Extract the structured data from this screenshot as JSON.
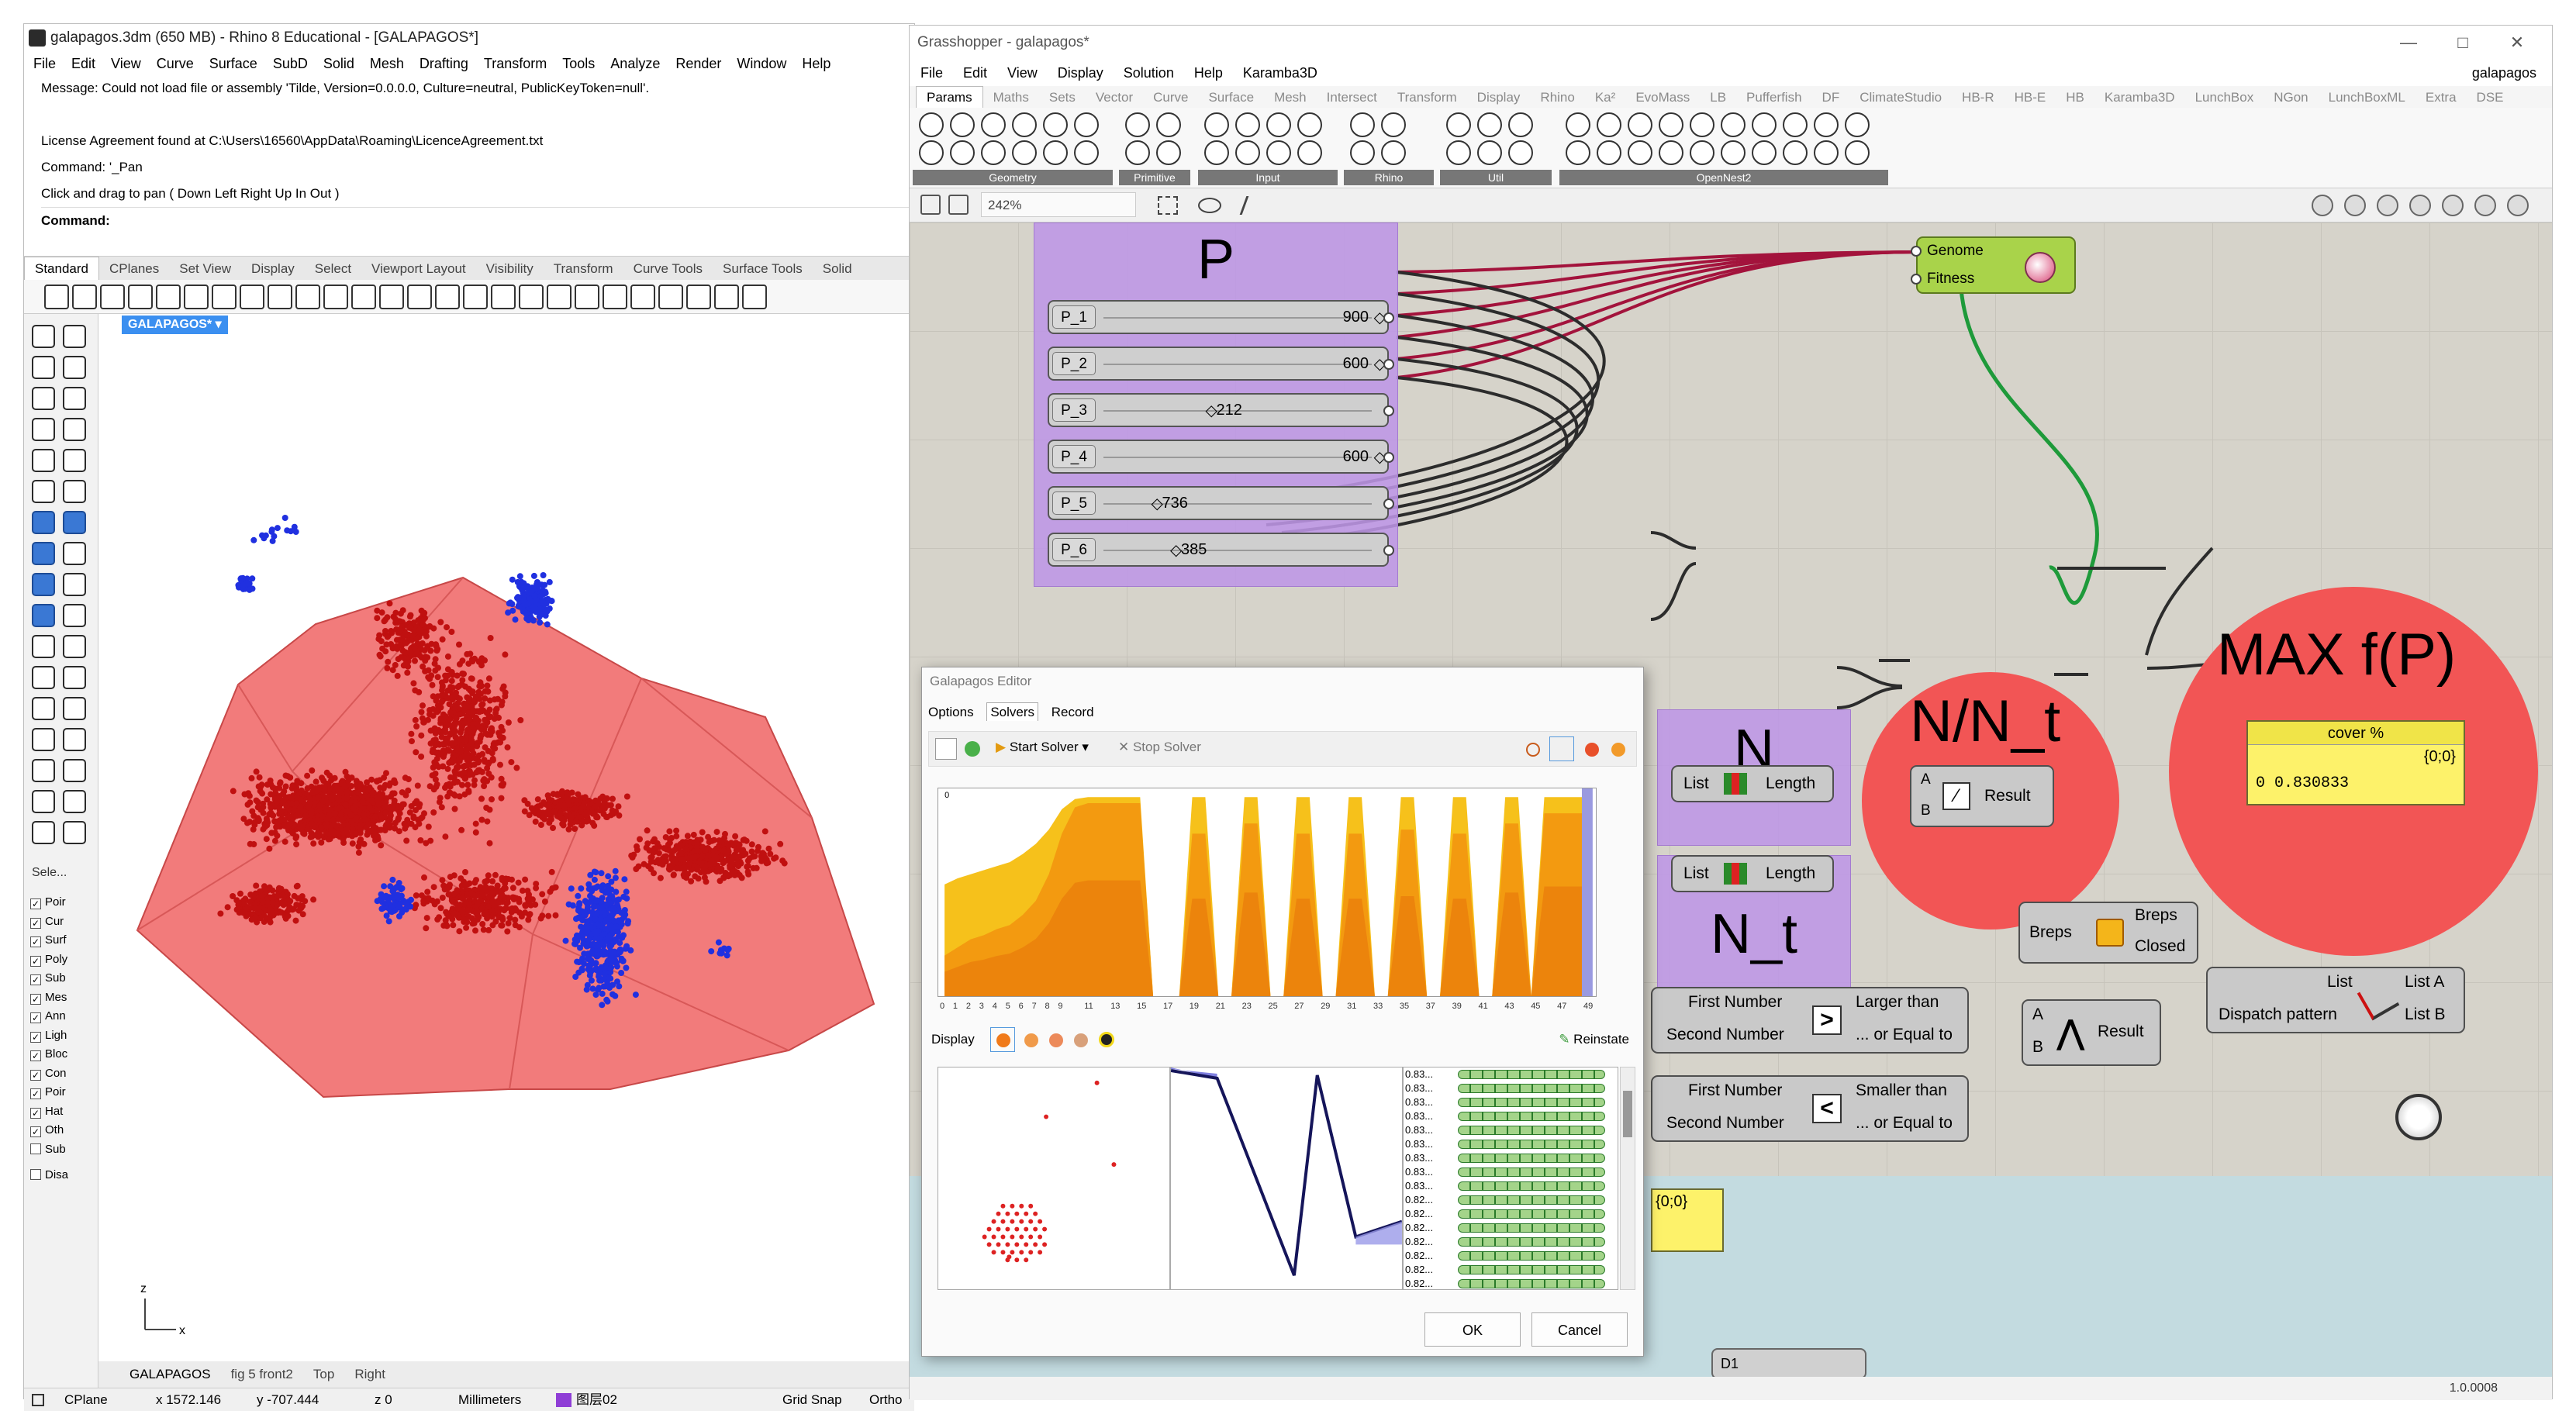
{
  "rhino": {
    "title": "galapagos.3dm (650 MB) - Rhino 8 Educational - [GALAPAGOS*]",
    "menu": [
      "File",
      "Edit",
      "View",
      "Curve",
      "Surface",
      "SubD",
      "Solid",
      "Mesh",
      "Drafting",
      "Transform",
      "Tools",
      "Analyze",
      "Render",
      "Window",
      "Help"
    ],
    "messages": [
      "Message: Could not load file or assembly 'Tilde, Version=0.0.0.0, Culture=neutral, PublicKeyToken=null'.",
      "",
      "License Agreement found at C:\\Users\\16560\\AppData\\Roaming\\LicenceAgreement.txt",
      "Command: '_Pan",
      "Click and drag to pan ( Down  Left  Right  Up  In  Out )"
    ],
    "command_label": "Command:",
    "toolbar_tabs": [
      "Standard",
      "CPlanes",
      "Set View",
      "Display",
      "Select",
      "Viewport Layout",
      "Visibility",
      "Transform",
      "Curve Tools",
      "Surface Tools",
      "Solid"
    ],
    "viewport_label": "GALAPAGOS*",
    "select_label": "Sele...",
    "filters": [
      {
        "label": "Poir",
        "checked": true
      },
      {
        "label": "Cur",
        "checked": true
      },
      {
        "label": "Surf",
        "checked": true
      },
      {
        "label": "Poly",
        "checked": true
      },
      {
        "label": "Sub",
        "checked": true
      },
      {
        "label": "Mes",
        "checked": true
      },
      {
        "label": "Ann",
        "checked": true
      },
      {
        "label": "Ligh",
        "checked": true
      },
      {
        "label": "Bloc",
        "checked": true
      },
      {
        "label": "Con",
        "checked": true
      },
      {
        "label": "Poir",
        "checked": true
      },
      {
        "label": "Hat",
        "checked": true
      },
      {
        "label": "Oth",
        "checked": true
      },
      {
        "label": "Sub",
        "checked": false
      },
      {
        "label": "Disa",
        "checked": false
      }
    ],
    "axis_z": "z",
    "axis_x": "x",
    "viewport_tabs": [
      "GALAPAGOS",
      "fig 5 front2",
      "Top",
      "Right"
    ],
    "status": {
      "cplane": "CPlane",
      "x": "x 1572.146",
      "y": "y -707.444",
      "z": "z 0",
      "units": "Millimeters",
      "layer": "图层02",
      "grid_snap": "Grid Snap",
      "ortho": "Ortho"
    },
    "colors": {
      "hull": "#f06464",
      "red_points": "#c01010",
      "blue_points": "#2030e0"
    }
  },
  "grasshopper": {
    "title": "Grasshopper - galapagos*",
    "win_buttons": [
      "—",
      "□",
      "✕"
    ],
    "menu": [
      "File",
      "Edit",
      "View",
      "Display",
      "Solution",
      "Help",
      "Karamba3D"
    ],
    "doc_name": "galapagos",
    "tabs": [
      "Params",
      "Maths",
      "Sets",
      "Vector",
      "Curve",
      "Surface",
      "Mesh",
      "Intersect",
      "Transform",
      "Display",
      "Rhino",
      "Ka²",
      "EvoMass",
      "LB",
      "Pufferfish",
      "DF",
      "ClimateStudio",
      "HB-R",
      "HB-E",
      "HB",
      "Karamba3D",
      "LunchBox",
      "NGon",
      "LunchBoxML",
      "Extra",
      "DSE"
    ],
    "ribbon_groups": [
      "Geometry",
      "Primitive",
      "Input",
      "Rhino",
      "Util",
      "OpenNest2"
    ],
    "zoom": "242%",
    "version": "1.0.0008",
    "canvas": {
      "group_p_title": "P",
      "sliders": [
        {
          "name": "P_1",
          "value": "900",
          "fraction": 1.0
        },
        {
          "name": "P_2",
          "value": "600",
          "fraction": 1.0
        },
        {
          "name": "P_3",
          "value": "212",
          "fraction": 0.45
        },
        {
          "name": "P_4",
          "value": "600",
          "fraction": 1.0
        },
        {
          "name": "P_5",
          "value": "736",
          "fraction": 0.25
        },
        {
          "name": "P_6",
          "value": "385",
          "fraction": 0.32
        }
      ],
      "galapagos_comp": {
        "genome": "Genome",
        "fitness": "Fitness"
      },
      "group_n_title": "N",
      "group_nt_title": "N_t",
      "list_length": {
        "input": "List",
        "output": "Length"
      },
      "division": {
        "title": "N/N_t",
        "a": "A",
        "b": "B",
        "output": "Result"
      },
      "max_title": "MAX f(P)",
      "panel_cover": {
        "title": "cover %",
        "path": "{0;0}",
        "value": "0 0.830833"
      },
      "breps_comp": {
        "input": "Breps",
        "out1": "Breps",
        "out2": "Closed"
      },
      "larger": {
        "in1": "First Number",
        "in2": "Second Number",
        "out1": "Larger than",
        "out2": "... or Equal to",
        "symbol": ">"
      },
      "smaller": {
        "in1": "First Number",
        "in2": "Second Number",
        "out1": "Smaller than",
        "out2": "... or Equal to",
        "symbol": "<"
      },
      "and_comp": {
        "a": "A",
        "b": "B",
        "output": "Result",
        "symbol": "⋀"
      },
      "dispatch": {
        "in1": "List",
        "in2": "Dispatch pattern",
        "out1": "List A",
        "out2": "List B"
      },
      "yellow_panel_path": "{0;0}",
      "bottom_param": "D1"
    }
  },
  "galapagos": {
    "title": "Galapagos Editor",
    "tabs": [
      "Options",
      "Solvers",
      "Record"
    ],
    "start_solver": "Start Solver",
    "stop_solver": "Stop Solver",
    "display_label": "Display",
    "reinstate": "Reinstate",
    "chart_y_label": "0",
    "x_ticks": [
      "0",
      "1",
      "2",
      "3",
      "4",
      "5",
      "6",
      "7",
      "8",
      "9",
      "11",
      "13",
      "15",
      "17",
      "19",
      "21",
      "23",
      "25",
      "27",
      "29",
      "31",
      "33",
      "35",
      "37",
      "39",
      "41",
      "43",
      "45",
      "47",
      "49"
    ],
    "fitness_values": [
      "0.83...",
      "0.83...",
      "0.83...",
      "0.83...",
      "0.83...",
      "0.83...",
      "0.83...",
      "0.83...",
      "0.83...",
      "0.82...",
      "0.82...",
      "0.82...",
      "0.82...",
      "0.82...",
      "0.82...",
      "0.82..."
    ],
    "ok": "OK",
    "cancel": "Cancel",
    "chart_data": {
      "type": "area",
      "x": [
        0,
        1,
        2,
        3,
        4,
        5,
        6,
        7,
        8,
        9,
        10,
        11,
        12,
        13,
        14,
        15,
        16,
        17,
        18,
        19,
        20,
        21,
        22,
        23,
        24,
        25,
        26,
        27,
        28,
        29,
        30,
        31,
        32,
        33,
        34,
        35,
        36,
        37,
        38,
        39,
        40,
        41,
        42,
        43,
        44,
        45,
        46,
        47,
        48,
        49
      ],
      "series": [
        {
          "values": [
            0.55,
            0.58,
            0.6,
            0.62,
            0.64,
            0.66,
            0.7,
            0.75,
            0.82,
            0.92,
            0.97,
            0.98,
            0.98,
            0.98,
            0.98,
            0.98,
            0,
            0,
            0,
            0.98,
            0.98,
            0,
            0,
            0.98,
            0.98,
            0,
            0,
            0.98,
            0.98,
            0,
            0,
            0.98,
            0.98,
            0,
            0,
            0.98,
            0.98,
            0,
            0,
            0.98,
            0.98,
            0,
            0,
            0.98,
            0.98,
            0,
            0.98,
            0.98,
            0.98,
            0.98
          ]
        },
        {
          "values": [
            0.2,
            0.24,
            0.28,
            0.3,
            0.33,
            0.35,
            0.4,
            0.47,
            0.6,
            0.8,
            0.93,
            0.95,
            0.95,
            0.95,
            0.95,
            0.95,
            0,
            0,
            0,
            0.8,
            0.8,
            0,
            0,
            0.85,
            0.85,
            0,
            0,
            0.8,
            0.8,
            0,
            0,
            0.8,
            0.8,
            0,
            0,
            0.82,
            0.82,
            0,
            0,
            0.8,
            0.8,
            0,
            0,
            0.85,
            0.85,
            0,
            0.9,
            0.9,
            0.9,
            0.9
          ]
        }
      ],
      "colors": [
        "#f6c11b",
        "#f39a10",
        "#e8770a"
      ]
    }
  }
}
